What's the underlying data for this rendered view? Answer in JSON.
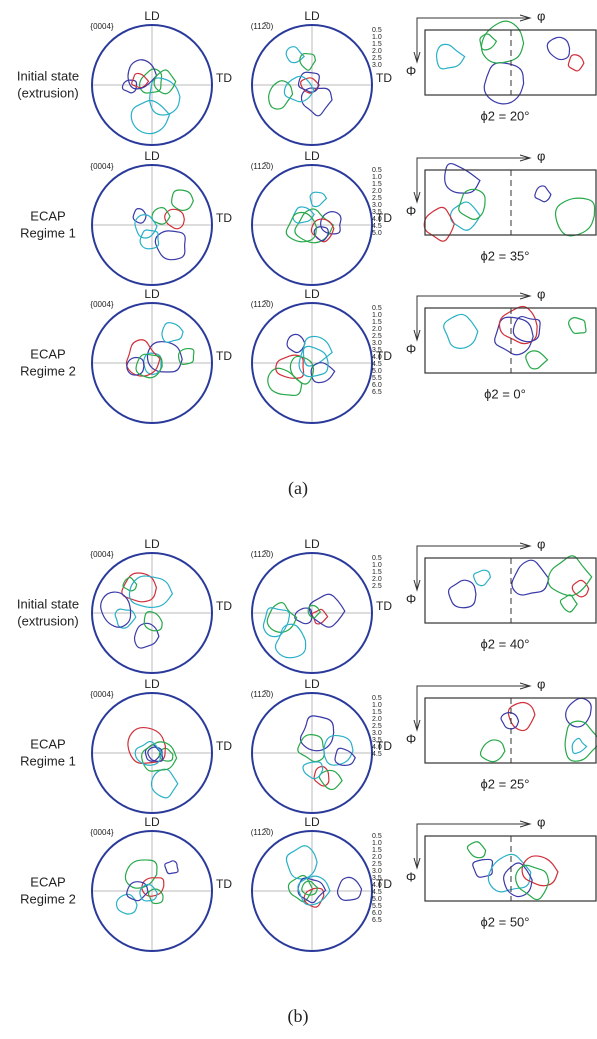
{
  "panels": [
    {
      "caption": "(a)",
      "rows": [
        {
          "label": [
            "Initial state",
            "(extrusion)"
          ],
          "pf1": {
            "plane": "{0004}",
            "ld": "LD",
            "td": "TD"
          },
          "pf2": {
            "plane": "(112̅0)",
            "ld": "LD",
            "td": "TD"
          },
          "levels": [
            "0.5",
            "1.0",
            "1.5",
            "2.0",
            "2.5",
            "3.0"
          ],
          "odf": {
            "phi1": "φ",
            "Phi": "Φ",
            "section": "ϕ2 = 20°"
          }
        },
        {
          "label": [
            "ECAP",
            "Regime 1"
          ],
          "pf1": {
            "plane": "{0004}",
            "ld": "LD",
            "td": "TD"
          },
          "pf2": {
            "plane": "(112̅0)",
            "ld": "LD",
            "td": "TD"
          },
          "levels": [
            "0.5",
            "1.0",
            "1.5",
            "2.0",
            "2.5",
            "3.0",
            "3.5",
            "4.0",
            "4.5",
            "5.0"
          ],
          "odf": {
            "phi1": "φ",
            "Phi": "Φ",
            "section": "ϕ2 = 35°"
          }
        },
        {
          "label": [
            "ECAP",
            "Regime 2"
          ],
          "pf1": {
            "plane": "{0004}",
            "ld": "LD",
            "td": "TD"
          },
          "pf2": {
            "plane": "(112̅0)",
            "ld": "LD",
            "td": "TD"
          },
          "levels": [
            "0.5",
            "1.0",
            "1.5",
            "2.0",
            "2.5",
            "3.0",
            "3.5",
            "4.0",
            "4.5",
            "5.0",
            "5.5",
            "6.0",
            "6.5"
          ],
          "odf": {
            "phi1": "φ",
            "Phi": "Φ",
            "section": "ϕ2 = 0°"
          }
        }
      ]
    },
    {
      "caption": "(b)",
      "rows": [
        {
          "label": [
            "Initial state",
            "(extrusion)"
          ],
          "pf1": {
            "plane": "{0004}",
            "ld": "LD",
            "td": "TD"
          },
          "pf2": {
            "plane": "(112̅0)",
            "ld": "LD",
            "td": "TD"
          },
          "levels": [
            "0.5",
            "1.0",
            "1.5",
            "2.0",
            "2.5"
          ],
          "odf": {
            "phi1": "φ",
            "Phi": "Φ",
            "section": "ϕ2 = 40°"
          }
        },
        {
          "label": [
            "ECAP",
            "Regime 1"
          ],
          "pf1": {
            "plane": "{0004}",
            "ld": "LD",
            "td": "TD"
          },
          "pf2": {
            "plane": "(112̅0)",
            "ld": "LD",
            "td": "TD"
          },
          "levels": [
            "0.5",
            "1.0",
            "1.5",
            "2.0",
            "2.5",
            "3.0",
            "3.5",
            "4.0",
            "4.5"
          ],
          "odf": {
            "phi1": "φ",
            "Phi": "Φ",
            "section": "ϕ2 = 25°"
          }
        },
        {
          "label": [
            "ECAP",
            "Regime 2"
          ],
          "pf1": {
            "plane": "{0004}",
            "ld": "LD",
            "td": "TD"
          },
          "pf2": {
            "plane": "(112̅0)",
            "ld": "LD",
            "td": "TD"
          },
          "levels": [
            "0.5",
            "1.0",
            "1.5",
            "2.0",
            "2.5",
            "3.0",
            "3.5",
            "4.0",
            "4.5",
            "5.0",
            "5.5",
            "6.0",
            "6.5"
          ],
          "odf": {
            "phi1": "φ",
            "Phi": "Φ",
            "section": "ϕ2 = 50°"
          }
        }
      ]
    }
  ]
}
